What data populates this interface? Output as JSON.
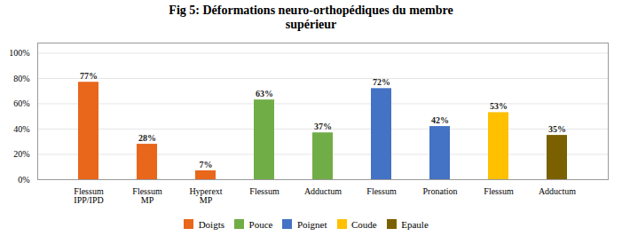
{
  "chart_data": {
    "type": "bar",
    "title": "Fig 5: Déformations neuro-orthopédiques du membre\nsupérieur",
    "categories": [
      "Flessum\nIPP/IPD",
      "Flessum\nMP",
      "Hyperext\nMP",
      "Flessum",
      "Adductum",
      "Flessum",
      "Pronation",
      "Flessum",
      "Adductum"
    ],
    "series": [
      {
        "name": "Doigts",
        "color": "#E8671A",
        "values": [
          77,
          28,
          7,
          null,
          null,
          null,
          null,
          null,
          null
        ],
        "value_labels": [
          "77%",
          "28%",
          "7%",
          null,
          null,
          null,
          null,
          null,
          null
        ]
      },
      {
        "name": "Pouce",
        "color": "#70AD47",
        "values": [
          null,
          null,
          null,
          63,
          37,
          null,
          null,
          null,
          null
        ],
        "value_labels": [
          null,
          null,
          null,
          "63%",
          "37%",
          null,
          null,
          null,
          null
        ]
      },
      {
        "name": "Poignet",
        "color": "#4472C4",
        "values": [
          null,
          null,
          null,
          null,
          null,
          72,
          42,
          null,
          null
        ],
        "value_labels": [
          null,
          null,
          null,
          null,
          null,
          "72%",
          "42%",
          null,
          null
        ]
      },
      {
        "name": "Coude",
        "color": "#FFC000",
        "values": [
          null,
          null,
          null,
          null,
          null,
          null,
          null,
          53,
          null
        ],
        "value_labels": [
          null,
          null,
          null,
          null,
          null,
          null,
          null,
          "53%",
          null
        ]
      },
      {
        "name": "Epaule",
        "color": "#7B6000",
        "values": [
          null,
          null,
          null,
          null,
          null,
          null,
          null,
          null,
          35
        ],
        "value_labels": [
          null,
          null,
          null,
          null,
          null,
          null,
          null,
          null,
          "35%"
        ]
      }
    ],
    "ylim": [
      0,
      108
    ],
    "yticks": [
      {
        "value": 0,
        "label": "0%"
      },
      {
        "value": 20,
        "label": "20%"
      },
      {
        "value": 40,
        "label": "40%"
      },
      {
        "value": 60,
        "label": "60%"
      },
      {
        "value": 80,
        "label": "80%"
      },
      {
        "value": 100,
        "label": "100%"
      }
    ],
    "grid": true,
    "legend": "bottom",
    "data_labels": true
  }
}
